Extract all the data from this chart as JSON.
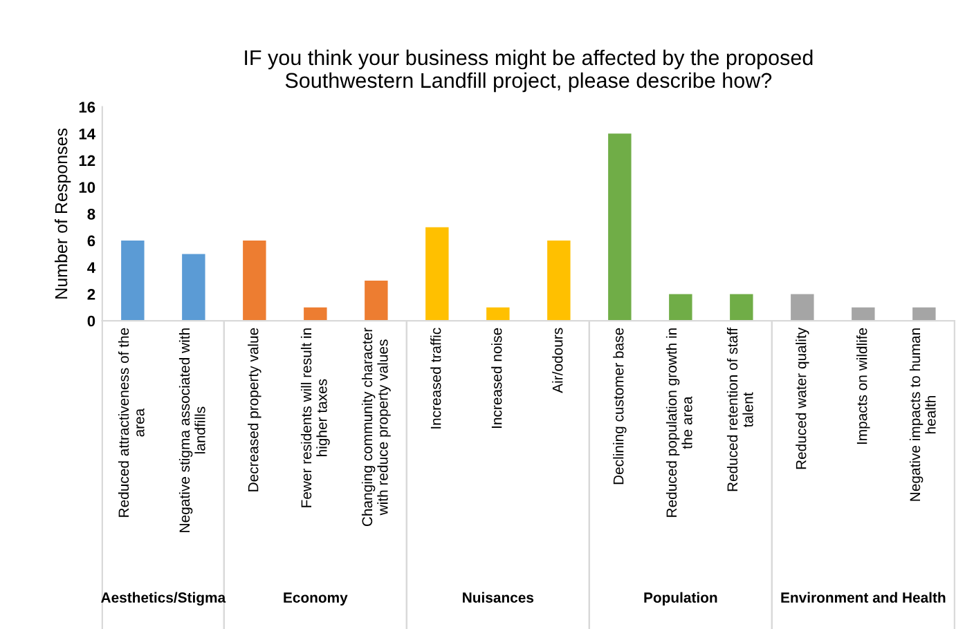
{
  "chart_data": {
    "type": "bar",
    "title": "IF you think your business might be affected by the proposed\nSouthwestern Landfill project, please describe how?",
    "ylabel": "Number of Responses",
    "categories": [
      "Reduced attractiveness of the\narea",
      "Negative stigma associated with\nlandfills",
      "Decreased property value",
      "Fewer residents will result in\nhigher taxes",
      "Changing community character\nwith reduce property values",
      "Increased traffic",
      "Increased noise",
      "Air/odours",
      "Declining customer base",
      "Reduced population growth in\nthe area",
      "Reduced retention of staff\ntalent",
      "Reduced water quality",
      "Impacts on wildlife",
      "Negative impacts to human\nhealth"
    ],
    "values": [
      6,
      5,
      6,
      1,
      3,
      7,
      1,
      6,
      14,
      2,
      2,
      2,
      1,
      1
    ],
    "colors": [
      "#5b9bd5",
      "#5b9bd5",
      "#ed7d31",
      "#ed7d31",
      "#ed7d31",
      "#ffc000",
      "#ffc000",
      "#ffc000",
      "#70ad47",
      "#70ad47",
      "#70ad47",
      "#a5a5a5",
      "#a5a5a5",
      "#a5a5a5"
    ],
    "ylim": [
      0,
      16
    ],
    "yticks": [
      0,
      2,
      4,
      6,
      8,
      10,
      12,
      14,
      16
    ],
    "grid": false,
    "legend": false,
    "annotations": [
      "Aesthetics/Stigma",
      "Economy",
      "Nuisances",
      "Population",
      "Environment and Health"
    ]
  }
}
